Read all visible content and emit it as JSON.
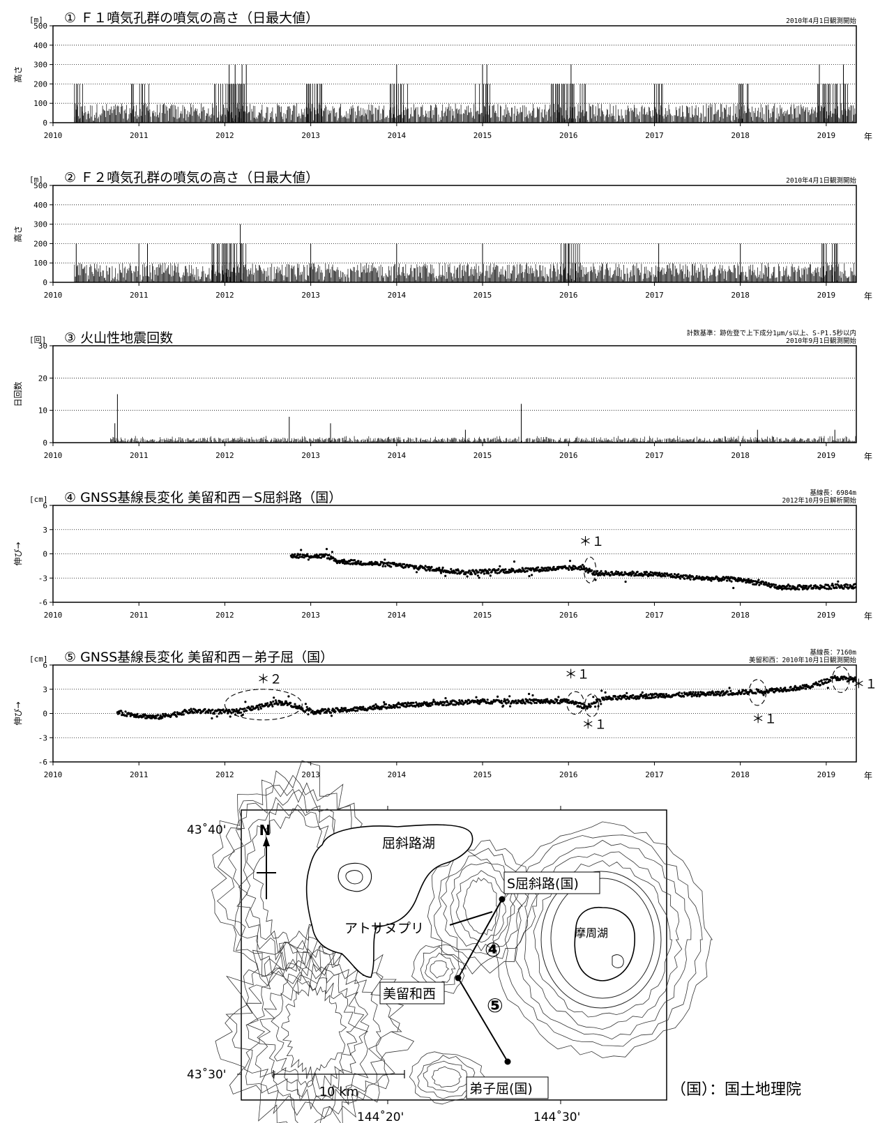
{
  "year_suffix": "年",
  "years": [
    "2010",
    "2011",
    "2012",
    "2013",
    "2014",
    "2015",
    "2016",
    "2017",
    "2018",
    "2019"
  ],
  "chart_data": [
    {
      "type": "bar",
      "title": "① Ｆ１噴気孔群の噴気の高さ（日最大値）",
      "unit": "[m]",
      "ylabel": "高さ",
      "xlabel": "年",
      "note_lines": [
        "2010年4月1日観測開始"
      ],
      "xlim": [
        2010.0,
        2019.35
      ],
      "ylim": [
        0,
        500
      ],
      "yticks": [
        "500",
        "400",
        "300",
        "200",
        "100",
        "0"
      ],
      "yticks_values": [
        500,
        400,
        300,
        200,
        100,
        0
      ],
      "grid": "horizontal dotted",
      "data_start": 2010.25,
      "typical_range": [
        0,
        100
      ],
      "peaks": [
        {
          "x": 2012.05,
          "y": 300
        },
        {
          "x": 2012.12,
          "y": 300
        },
        {
          "x": 2012.2,
          "y": 300
        },
        {
          "x": 2012.25,
          "y": 300
        },
        {
          "x": 2014.0,
          "y": 300
        },
        {
          "x": 2015.0,
          "y": 300
        },
        {
          "x": 2015.05,
          "y": 300
        },
        {
          "x": 2016.03,
          "y": 300
        },
        {
          "x": 2017.0,
          "y": 200
        },
        {
          "x": 2018.92,
          "y": 300
        },
        {
          "x": 2019.2,
          "y": 300
        }
      ],
      "bursts": [
        {
          "from": 2010.25,
          "to": 2010.38,
          "y": 200
        },
        {
          "from": 2010.9,
          "to": 2011.15,
          "y": 200
        },
        {
          "from": 2011.88,
          "to": 2012.25,
          "y": 200
        },
        {
          "from": 2012.95,
          "to": 2013.15,
          "y": 200
        },
        {
          "from": 2013.9,
          "to": 2014.15,
          "y": 200
        },
        {
          "from": 2014.88,
          "to": 2015.1,
          "y": 200
        },
        {
          "from": 2015.8,
          "to": 2016.2,
          "y": 200
        },
        {
          "from": 2016.95,
          "to": 2017.1,
          "y": 200
        },
        {
          "from": 2017.9,
          "to": 2018.1,
          "y": 200
        },
        {
          "from": 2018.9,
          "to": 2019.25,
          "y": 200
        }
      ]
    },
    {
      "type": "bar",
      "title": "② Ｆ２噴気孔群の噴気の高さ（日最大値）",
      "unit": "[m]",
      "ylabel": "高さ",
      "xlabel": "年",
      "note_lines": [
        "2010年4月1日観測開始"
      ],
      "xlim": [
        2010.0,
        2019.35
      ],
      "ylim": [
        0,
        500
      ],
      "yticks": [
        "500",
        "400",
        "300",
        "200",
        "100",
        "0"
      ],
      "yticks_values": [
        500,
        400,
        300,
        200,
        100,
        0
      ],
      "grid": "horizontal dotted",
      "data_start": 2010.25,
      "typical_range": [
        0,
        100
      ],
      "peaks": [
        {
          "x": 2010.27,
          "y": 200
        },
        {
          "x": 2011.0,
          "y": 200
        },
        {
          "x": 2011.1,
          "y": 200
        },
        {
          "x": 2012.18,
          "y": 300
        },
        {
          "x": 2013.0,
          "y": 200
        },
        {
          "x": 2014.0,
          "y": 200
        },
        {
          "x": 2015.0,
          "y": 200
        },
        {
          "x": 2016.0,
          "y": 200
        },
        {
          "x": 2017.05,
          "y": 200
        },
        {
          "x": 2018.0,
          "y": 200
        },
        {
          "x": 2019.0,
          "y": 200
        }
      ],
      "bursts": [
        {
          "from": 2011.85,
          "to": 2012.25,
          "y": 200
        },
        {
          "from": 2015.9,
          "to": 2016.15,
          "y": 200
        },
        {
          "from": 2018.95,
          "to": 2019.15,
          "y": 200
        }
      ]
    },
    {
      "type": "bar",
      "title": "③ 火山性地震回数",
      "unit": "[回]",
      "ylabel": "日回数",
      "xlabel": "年",
      "note_lines": [
        "計数基準：跡佐登で上下成分1μm/s以上、S-P1.5秒以内",
        "2010年9月1日観測開始"
      ],
      "xlim": [
        2010.0,
        2019.35
      ],
      "ylim": [
        0,
        30
      ],
      "yticks": [
        "30",
        "20",
        "10",
        "0"
      ],
      "yticks_values": [
        30,
        20,
        10,
        0
      ],
      "grid": "horizontal dotted",
      "data_start": 2010.67,
      "typical_range": [
        0,
        2
      ],
      "peaks": [
        {
          "x": 2010.75,
          "y": 15
        },
        {
          "x": 2010.72,
          "y": 6
        },
        {
          "x": 2012.75,
          "y": 8
        },
        {
          "x": 2013.23,
          "y": 6
        },
        {
          "x": 2014.8,
          "y": 4
        },
        {
          "x": 2015.45,
          "y": 12
        },
        {
          "x": 2018.2,
          "y": 4
        },
        {
          "x": 2019.1,
          "y": 4
        }
      ],
      "bursts": []
    },
    {
      "type": "scatter",
      "title": "④ GNSS基線長変化 美留和西－S屈斜路（国）",
      "unit": "[cm]",
      "ylabel": "伸び→",
      "xlabel": "年",
      "note_lines": [
        "基線長：6984m",
        "2012年10月9日解析開始"
      ],
      "xlim": [
        2010.0,
        2019.35
      ],
      "ylim": [
        -6,
        6
      ],
      "yticks": [
        "6",
        "3",
        "0",
        "-3",
        "-6"
      ],
      "yticks_values": [
        6,
        3,
        0,
        -3,
        -6
      ],
      "grid": "horizontal dotted",
      "trend": [
        {
          "x": 2012.77,
          "y": -0.2
        },
        {
          "x": 2013.2,
          "y": -0.3
        },
        {
          "x": 2013.3,
          "y": -0.9
        },
        {
          "x": 2014.0,
          "y": -1.4
        },
        {
          "x": 2014.8,
          "y": -2.3
        },
        {
          "x": 2015.5,
          "y": -2.0
        },
        {
          "x": 2016.15,
          "y": -1.7
        },
        {
          "x": 2016.3,
          "y": -2.4
        },
        {
          "x": 2017.0,
          "y": -2.5
        },
        {
          "x": 2017.5,
          "y": -3.0
        },
        {
          "x": 2018.0,
          "y": -3.2
        },
        {
          "x": 2018.5,
          "y": -4.2
        },
        {
          "x": 2019.35,
          "y": -4.0
        }
      ],
      "annotations": [
        {
          "text": "＊１",
          "x": 2016.27,
          "y": 1.0,
          "circle": {
            "cx": 2016.25,
            "cy": -2.0,
            "rx": 0.07,
            "ry": 1.6
          }
        }
      ]
    },
    {
      "type": "scatter",
      "title": "⑤ GNSS基線長変化 美留和西－弟子屈（国）",
      "unit": "[cm]",
      "ylabel": "伸び→",
      "xlabel": "年",
      "note_lines": [
        "基線長：7160m",
        "美留和西：2010年10月1日観測開始"
      ],
      "xlim": [
        2010.0,
        2019.35
      ],
      "ylim": [
        -6,
        6
      ],
      "yticks": [
        "6",
        "3",
        "0",
        "-3",
        "-6"
      ],
      "yticks_values": [
        6,
        3,
        0,
        -3,
        -6
      ],
      "grid": "horizontal dotted",
      "trend": [
        {
          "x": 2010.75,
          "y": 0.1
        },
        {
          "x": 2011.2,
          "y": -0.5
        },
        {
          "x": 2011.6,
          "y": 0.3
        },
        {
          "x": 2012.1,
          "y": 0.2
        },
        {
          "x": 2012.4,
          "y": 0.8
        },
        {
          "x": 2012.6,
          "y": 1.4
        },
        {
          "x": 2012.75,
          "y": 1.2
        },
        {
          "x": 2013.0,
          "y": 0.2
        },
        {
          "x": 2013.5,
          "y": 0.5
        },
        {
          "x": 2014.0,
          "y": 1.0
        },
        {
          "x": 2015.0,
          "y": 1.5
        },
        {
          "x": 2016.0,
          "y": 1.5
        },
        {
          "x": 2016.2,
          "y": 0.8
        },
        {
          "x": 2016.4,
          "y": 1.8
        },
        {
          "x": 2017.0,
          "y": 2.2
        },
        {
          "x": 2017.8,
          "y": 2.5
        },
        {
          "x": 2018.3,
          "y": 2.8
        },
        {
          "x": 2018.8,
          "y": 3.3
        },
        {
          "x": 2019.1,
          "y": 4.4
        },
        {
          "x": 2019.35,
          "y": 4.2
        }
      ],
      "annotations": [
        {
          "text": "＊２",
          "x": 2012.52,
          "y": 3.7,
          "circle": {
            "cx": 2012.45,
            "cy": 1.1,
            "rx": 0.45,
            "ry": 1.9
          }
        },
        {
          "text": "＊１",
          "x": 2016.1,
          "y": 4.3,
          "circle": {
            "cx": 2016.08,
            "cy": 1.3,
            "rx": 0.1,
            "ry": 1.4
          }
        },
        {
          "text": "＊１",
          "x": 2016.3,
          "y": -1.9,
          "circle": {
            "cx": 2016.27,
            "cy": 1.0,
            "rx": 0.08,
            "ry": 1.4
          }
        },
        {
          "text": "＊１",
          "x": 2018.28,
          "y": -1.2,
          "circle": {
            "cx": 2018.2,
            "cy": 2.6,
            "rx": 0.1,
            "ry": 1.6
          }
        },
        {
          "text": "＊１",
          "x": 2019.45,
          "y": 3.1,
          "circle": {
            "cx": 2019.17,
            "cy": 4.2,
            "rx": 0.1,
            "ry": 1.6
          }
        }
      ]
    }
  ],
  "map": {
    "lat_top": "43˚40'",
    "lat_bottom": "43˚30'",
    "lon_left": "144˚20'",
    "lon_right": "144˚30'",
    "north": "N",
    "lake_kussharo": "屈斜路湖",
    "lake_mashu": "摩周湖",
    "atosanupuri": "アトサヌプリ",
    "station_s": "S屈斜路(国)",
    "station_biruwa": "美留和西",
    "station_teshikaga": "弟子屈(国)",
    "line4": "④",
    "line5": "⑤",
    "scale": "10 km",
    "legend": "（国）：国土地理院"
  }
}
